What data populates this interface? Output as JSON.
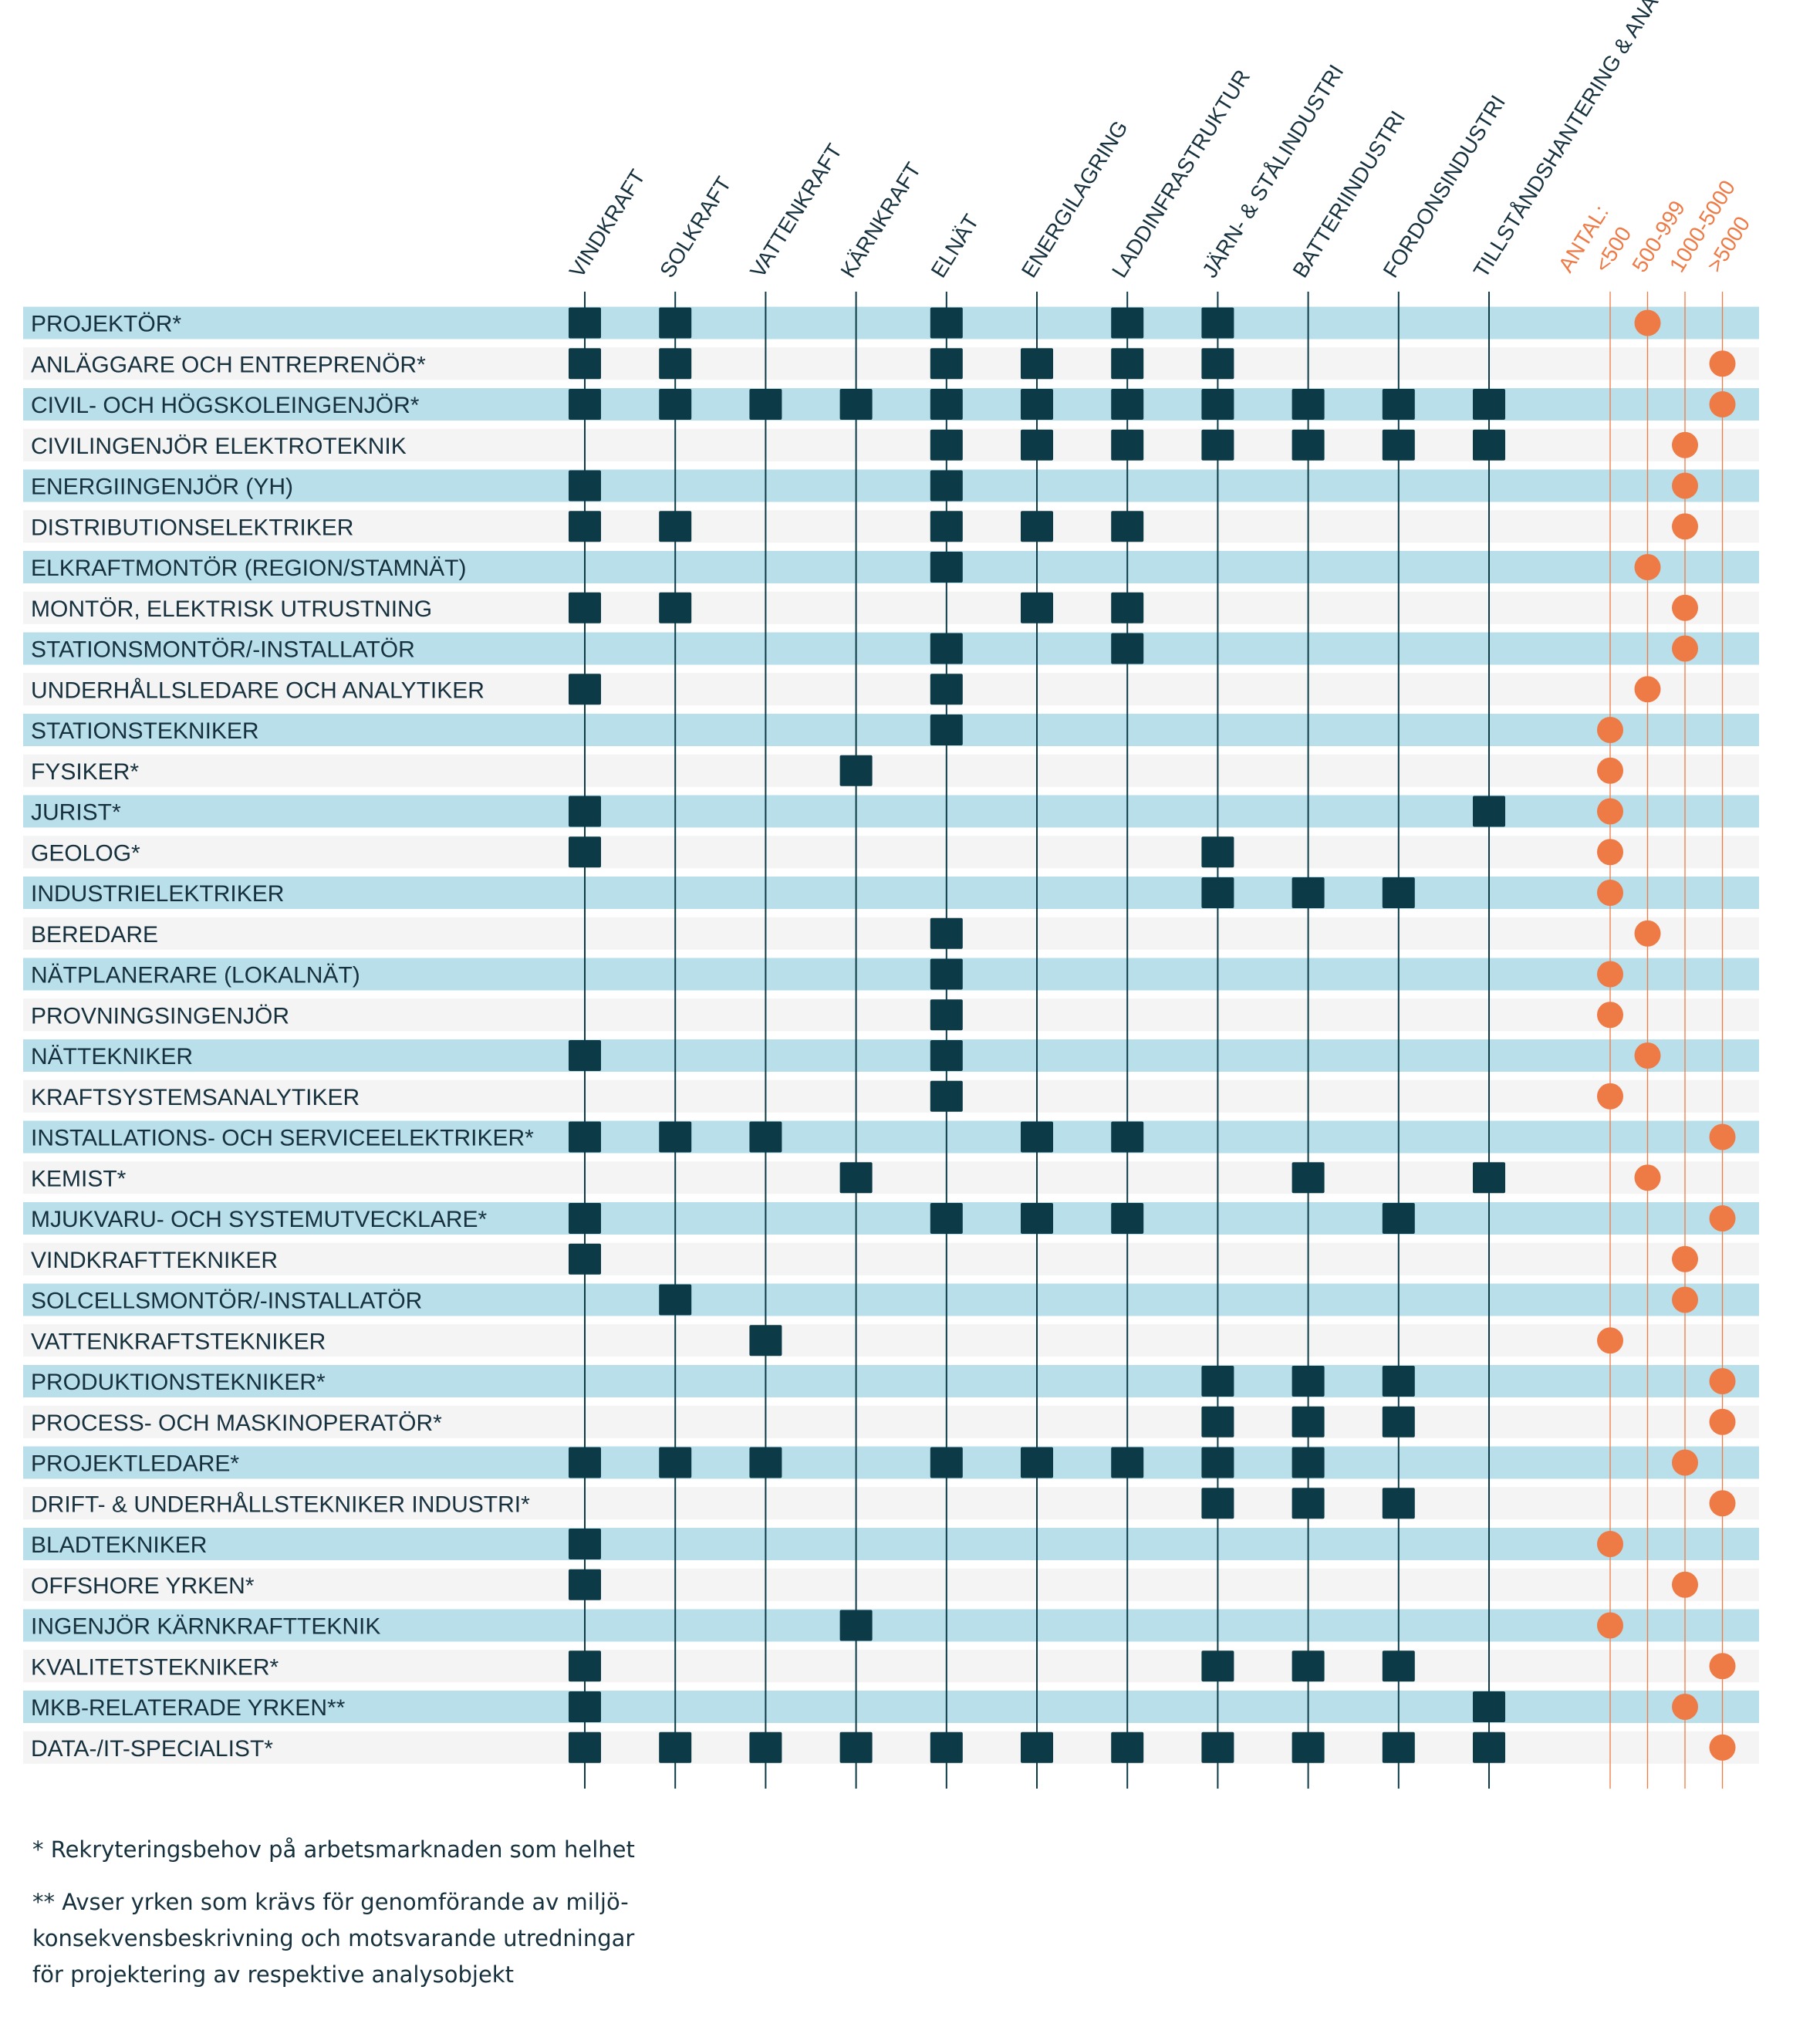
{
  "chart_data": {
    "type": "table",
    "columns": [
      "VINDKRAFT",
      "SOLKRAFT",
      "VATTENKRAFT",
      "KÄRNKRAFT",
      "ELNÄT",
      "ENERGILAGRING",
      "LADDINFRASTRUKTUR",
      "JÄRN- & STÅLINDUSTRI",
      "BATTERIINDUSTRI",
      "FORDONSINDUSTRI",
      "TILLSTÅNDSHANTERING & ANALYS"
    ],
    "count_header": "ANTAL:",
    "count_categories": [
      "<500",
      "500-999",
      "1000-5000",
      ">5000"
    ],
    "rows": [
      {
        "label": "PROJEKTÖR*",
        "marks": [
          0,
          1,
          4,
          6,
          7
        ],
        "count": 1
      },
      {
        "label": "ANLÄGGARE OCH ENTREPRENÖR*",
        "marks": [
          0,
          1,
          4,
          5,
          6,
          7
        ],
        "count": 3
      },
      {
        "label": "CIVIL- OCH HÖGSKOLEINGENJÖR*",
        "marks": [
          0,
          1,
          2,
          3,
          4,
          5,
          6,
          7,
          8,
          9,
          10
        ],
        "count": 3
      },
      {
        "label": "CIVILINGENJÖR ELEKTROTEKNIK",
        "marks": [
          4,
          5,
          6,
          7,
          8,
          9,
          10
        ],
        "count": 2
      },
      {
        "label": "ENERGIINGENJÖR (YH)",
        "marks": [
          0,
          4
        ],
        "count": 2
      },
      {
        "label": "DISTRIBUTIONSELEKTRIKER",
        "marks": [
          0,
          1,
          4,
          5,
          6
        ],
        "count": 2
      },
      {
        "label": "ELKRAFTMONTÖR (REGION/STAMNÄT)",
        "marks": [
          4
        ],
        "count": 1
      },
      {
        "label": "MONTÖR, ELEKTRISK UTRUSTNING",
        "marks": [
          0,
          1,
          5,
          6
        ],
        "count": 2
      },
      {
        "label": "STATIONSMONTÖR/-INSTALLATÖR",
        "marks": [
          4,
          6
        ],
        "count": 2
      },
      {
        "label": "UNDERHÅLLSLEDARE OCH ANALYTIKER",
        "marks": [
          0,
          4
        ],
        "count": 1
      },
      {
        "label": "STATIONSTEKNIKER",
        "marks": [
          4
        ],
        "count": 0
      },
      {
        "label": "FYSIKER*",
        "marks": [
          3
        ],
        "count": 0
      },
      {
        "label": "JURIST*",
        "marks": [
          0,
          10
        ],
        "count": 0
      },
      {
        "label": "GEOLOG*",
        "marks": [
          0,
          7
        ],
        "count": 0
      },
      {
        "label": "INDUSTRIELEKTRIKER",
        "marks": [
          7,
          8,
          9
        ],
        "count": 0
      },
      {
        "label": "BEREDARE",
        "marks": [
          4
        ],
        "count": 1
      },
      {
        "label": "NÄTPLANERARE (LOKALNÄT)",
        "marks": [
          4
        ],
        "count": 0
      },
      {
        "label": "PROVNINGSINGENJÖR",
        "marks": [
          4
        ],
        "count": 0
      },
      {
        "label": "NÄTTEKNIKER",
        "marks": [
          0,
          4
        ],
        "count": 1
      },
      {
        "label": "KRAFTSYSTEMSANALYTIKER",
        "marks": [
          4
        ],
        "count": 0
      },
      {
        "label": "INSTALLATIONS- OCH SERVICEELEKTRIKER*",
        "marks": [
          0,
          1,
          2,
          5,
          6
        ],
        "count": 3
      },
      {
        "label": "KEMIST*",
        "marks": [
          3,
          8,
          10
        ],
        "count": 1
      },
      {
        "label": "MJUKVARU- OCH SYSTEMUTVECKLARE*",
        "marks": [
          0,
          4,
          5,
          6,
          9
        ],
        "count": 3
      },
      {
        "label": "VINDKRAFTTEKNIKER",
        "marks": [
          0
        ],
        "count": 2
      },
      {
        "label": "SOLCELLSMONTÖR/-INSTALLATÖR",
        "marks": [
          1
        ],
        "count": 2
      },
      {
        "label": "VATTENKRAFTSTEKNIKER",
        "marks": [
          2
        ],
        "count": 0
      },
      {
        "label": "PRODUKTIONSTEKNIKER*",
        "marks": [
          7,
          8,
          9
        ],
        "count": 3
      },
      {
        "label": "PROCESS- OCH MASKINOPERATÖR*",
        "marks": [
          7,
          8,
          9
        ],
        "count": 3
      },
      {
        "label": "PROJEKTLEDARE*",
        "marks": [
          0,
          1,
          2,
          4,
          5,
          6,
          7,
          8
        ],
        "count": 2
      },
      {
        "label": "DRIFT- & UNDERHÅLLSTEKNIKER INDUSTRI*",
        "marks": [
          7,
          8,
          9
        ],
        "count": 3
      },
      {
        "label": "BLADTEKNIKER",
        "marks": [
          0
        ],
        "count": 0
      },
      {
        "label": "OFFSHORE YRKEN*",
        "marks": [
          0
        ],
        "count": 2
      },
      {
        "label": "INGENJÖR KÄRNKRAFTTEKNIK",
        "marks": [
          3
        ],
        "count": 0
      },
      {
        "label": "KVALITETSTEKNIKER*",
        "marks": [
          0,
          7,
          8,
          9
        ],
        "count": 3
      },
      {
        "label": "MKB-RELATERADE YRKEN**",
        "marks": [
          0,
          10
        ],
        "count": 2
      },
      {
        "label": "DATA-/IT-SPECIALIST*",
        "marks": [
          0,
          1,
          2,
          3,
          4,
          5,
          6,
          7,
          8,
          9,
          10
        ],
        "count": 3
      }
    ],
    "colors": {
      "band": "#b8dfea",
      "band_alt": "#f4f4f4",
      "mark": "#0c3b47",
      "dot": "#ee7a45",
      "text": "#16313d"
    }
  },
  "footnotes": {
    "note1": "* Rekryteringsbehov på arbetsmarknaden som helhet",
    "note2": "** Avser yrken som krävs för genomförande av miljö-\nkonsekvensbeskrivning och motsvarande utredningar\nför projektering av respektive analysobjekt"
  }
}
